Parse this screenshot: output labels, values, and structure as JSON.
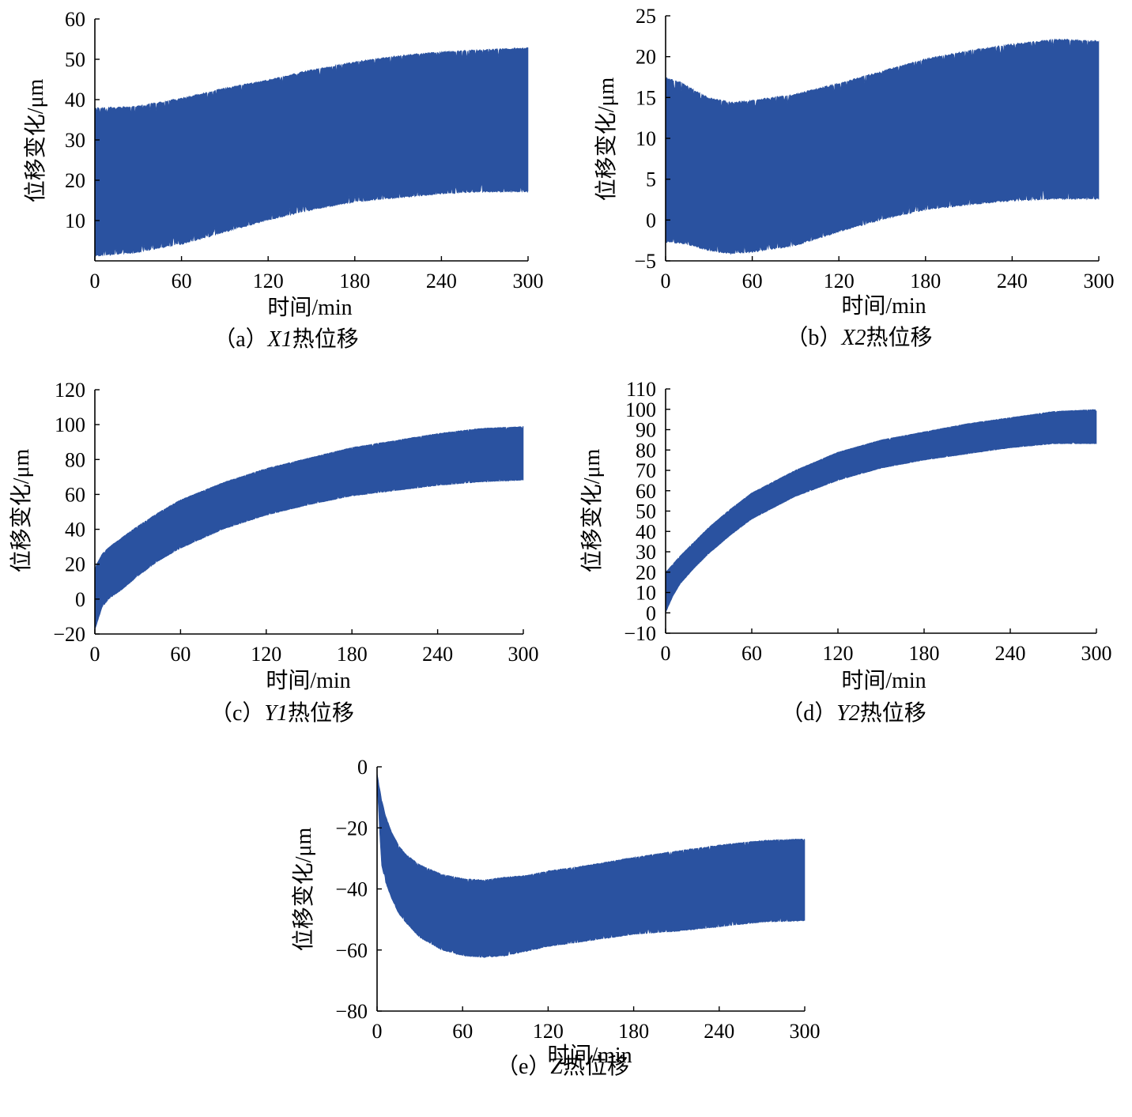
{
  "series_color": "#2a52a0",
  "chart_data": [
    {
      "id": "a",
      "type": "area",
      "caption": "（a）X1热位移",
      "caption_prefix": "（a）",
      "caption_var": "X1",
      "caption_suffix": "热位移",
      "xlabel": "时间/min",
      "ylabel": "位移变化/μm",
      "xlim": [
        0,
        300
      ],
      "ylim": [
        0,
        60
      ],
      "xticks": [
        0,
        60,
        120,
        180,
        240,
        300
      ],
      "yticks": [
        10,
        20,
        30,
        40,
        50,
        60
      ],
      "x": [
        0,
        30,
        60,
        90,
        120,
        150,
        180,
        210,
        240,
        270,
        300
      ],
      "upper": [
        38,
        38.5,
        40.5,
        43,
        45,
        47.5,
        49.5,
        51,
        52,
        52.5,
        53
      ],
      "lower": [
        1,
        2,
        4,
        7,
        10,
        12.5,
        14.5,
        15.5,
        16.5,
        17,
        17
      ]
    },
    {
      "id": "b",
      "type": "area",
      "caption": "（b）X2热位移",
      "caption_prefix": "（b）",
      "caption_var": "X2",
      "caption_suffix": "热位移",
      "xlabel": "时间/min",
      "ylabel": "位移变化/μm",
      "xlim": [
        0,
        300
      ],
      "ylim": [
        -5,
        25
      ],
      "xticks": [
        0,
        60,
        120,
        180,
        240,
        300
      ],
      "yticks": [
        -5,
        0,
        5,
        10,
        15,
        20,
        25
      ],
      "x": [
        0,
        10,
        20,
        30,
        45,
        60,
        90,
        120,
        150,
        180,
        210,
        240,
        270,
        300
      ],
      "upper": [
        17.5,
        17,
        16,
        15,
        14.5,
        14.7,
        15.5,
        16.8,
        18.3,
        19.8,
        20.8,
        21.6,
        22.2,
        22
      ],
      "lower": [
        -2.8,
        -2.9,
        -3.3,
        -3.8,
        -4.2,
        -4,
        -3.2,
        -1.5,
        0,
        1.2,
        1.8,
        2.3,
        2.5,
        2.5
      ]
    },
    {
      "id": "c",
      "type": "area",
      "caption": "（c）Y1热位移",
      "caption_prefix": "（c）",
      "caption_var": "Y1",
      "caption_suffix": "热位移",
      "xlabel": "时间/min",
      "ylabel": "位移变化/μm",
      "xlim": [
        0,
        300
      ],
      "ylim": [
        -20,
        120
      ],
      "xticks": [
        0,
        60,
        120,
        180,
        240,
        300
      ],
      "yticks": [
        -20,
        0,
        20,
        40,
        60,
        80,
        100,
        120
      ],
      "x": [
        0,
        5,
        10,
        20,
        30,
        45,
        60,
        90,
        120,
        150,
        180,
        210,
        240,
        270,
        300
      ],
      "upper": [
        18,
        26,
        30,
        36,
        42,
        50,
        57,
        67,
        75,
        81,
        87,
        91,
        95,
        98,
        99
      ],
      "lower": [
        -18,
        -5,
        0,
        6,
        13,
        22,
        29,
        40,
        48,
        54,
        59,
        62,
        65,
        67,
        68
      ]
    },
    {
      "id": "d",
      "type": "area",
      "caption": "（d）Y2热位移",
      "caption_prefix": "（d）",
      "caption_var": "Y2",
      "caption_suffix": "热位移",
      "xlabel": "时间/min",
      "ylabel": "位移变化/μm",
      "xlim": [
        0,
        300
      ],
      "ylim": [
        -10,
        110
      ],
      "xticks": [
        0,
        60,
        120,
        180,
        240,
        300
      ],
      "yticks": [
        -10,
        0,
        10,
        20,
        30,
        40,
        50,
        60,
        70,
        80,
        90,
        100,
        110
      ],
      "x": [
        0,
        5,
        10,
        20,
        30,
        45,
        60,
        90,
        120,
        150,
        180,
        210,
        240,
        270,
        300
      ],
      "upper": [
        20,
        24,
        28,
        35,
        42,
        51,
        59,
        70,
        79,
        85,
        89,
        93,
        96,
        99,
        100
      ],
      "lower": [
        0,
        8,
        14,
        22,
        29,
        38,
        46,
        57,
        65,
        71,
        75,
        78,
        81,
        83,
        83
      ]
    },
    {
      "id": "e",
      "type": "area",
      "caption": "（e）Z热位移",
      "caption_prefix": "（e）",
      "caption_var": "Z",
      "caption_suffix": "热位移",
      "xlabel": "时间/min",
      "ylabel": "位移变化/μm",
      "xlim": [
        0,
        300
      ],
      "ylim": [
        -80,
        0
      ],
      "xticks": [
        0,
        60,
        120,
        180,
        240,
        300
      ],
      "yticks": [
        -80,
        -60,
        -40,
        -20,
        0
      ],
      "x": [
        0,
        3,
        6,
        10,
        15,
        20,
        30,
        45,
        60,
        75,
        90,
        105,
        120,
        150,
        180,
        210,
        240,
        270,
        300
      ],
      "upper": [
        -2,
        -10,
        -16,
        -21,
        -25.5,
        -28.5,
        -32,
        -35,
        -36.5,
        -37,
        -36,
        -35.5,
        -34,
        -32,
        -29.5,
        -27.5,
        -25.5,
        -24,
        -23.5
      ],
      "lower": [
        -5,
        -32,
        -38,
        -43,
        -48,
        -51,
        -56,
        -60,
        -62,
        -62.5,
        -62,
        -60.5,
        -59,
        -57,
        -55,
        -54,
        -52.5,
        -51,
        -50.5
      ]
    }
  ]
}
